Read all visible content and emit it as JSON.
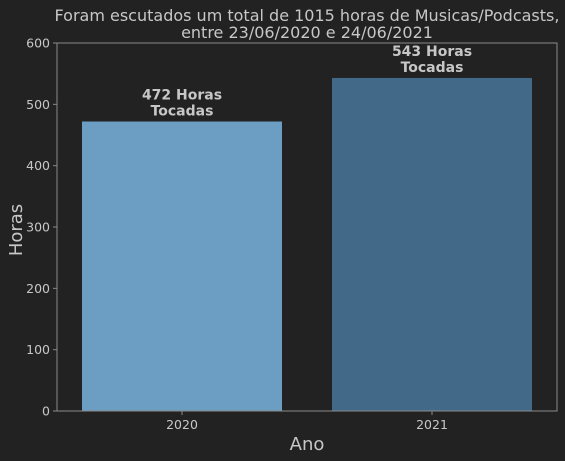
{
  "chart_data": {
    "type": "bar",
    "title": "Foram escutados um total de 1015 horas de Musicas/Podcasts,",
    "subtitle": "entre 23/06/2020 e 24/06/2021",
    "xlabel": "Ano",
    "ylabel": "Horas",
    "categories": [
      "2020",
      "2021"
    ],
    "values": [
      472,
      543
    ],
    "data_labels": [
      [
        "472 Horas",
        "Tocadas"
      ],
      [
        "543 Horas",
        "Tocadas"
      ]
    ],
    "ylim": [
      0,
      600
    ],
    "yticks": [
      0,
      100,
      200,
      300,
      400,
      500,
      600
    ],
    "grid": false,
    "legend": "none",
    "colors": [
      "#6b9ec2",
      "#426987"
    ]
  },
  "colors": {
    "background": "#222222",
    "frame": "#8a8a8a",
    "text": "#c7c7c7"
  }
}
